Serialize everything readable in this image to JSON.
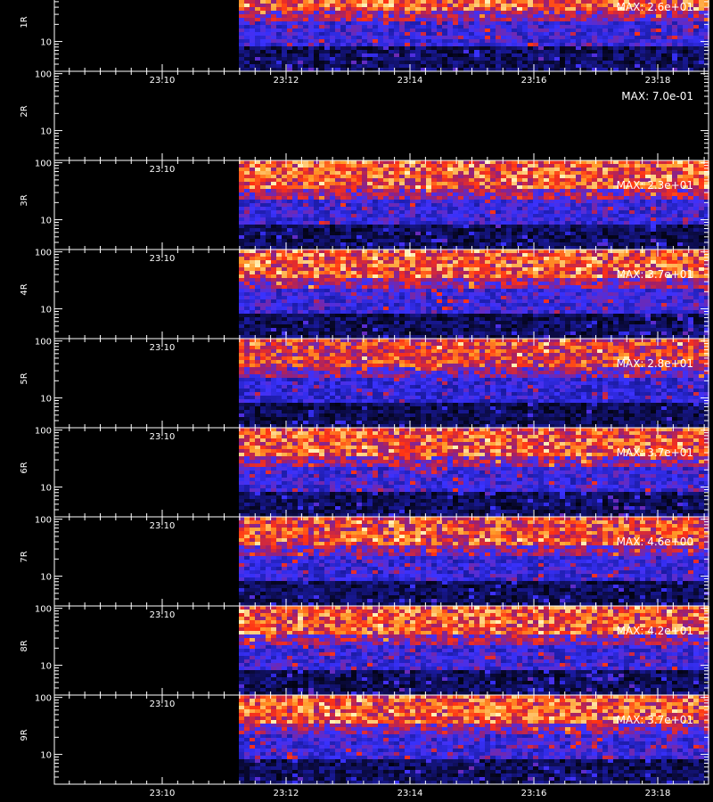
{
  "chart_data": {
    "type": "heatmap",
    "x_tick_labels": [
      "23:10",
      "23:12",
      "23:14",
      "23:16",
      "23:18"
    ],
    "y_tick_labels": [
      "100",
      "10"
    ],
    "y_scale": "log",
    "ylim": [
      3,
      110
    ],
    "colormap": [
      "#000000",
      "#1a1aa0",
      "#3a32ff",
      "#a0206a",
      "#ff3214",
      "#ff9a28",
      "#fff0b4"
    ],
    "panels": [
      {
        "label": "1R",
        "max_label": "MAX: 2.6e+01",
        "has_data": true,
        "level": 1.0
      },
      {
        "label": "2R",
        "max_label": "MAX: 7.0e-01",
        "has_data": false,
        "level": 0.0
      },
      {
        "label": "3R",
        "max_label": "MAX: 2.3e+01",
        "has_data": true,
        "level": 1.0
      },
      {
        "label": "4R",
        "max_label": "MAX: 3.7e+01",
        "has_data": true,
        "level": 1.0
      },
      {
        "label": "5R",
        "max_label": "MAX: 2.8e+01",
        "has_data": true,
        "level": 0.9
      },
      {
        "label": "6R",
        "max_label": "MAX: 3.7e+01",
        "has_data": true,
        "level": 1.0
      },
      {
        "label": "7R",
        "max_label": "MAX: 4.6e+00",
        "has_data": true,
        "level": 0.95
      },
      {
        "label": "8R",
        "max_label": "MAX: 4.2e+01",
        "has_data": true,
        "level": 1.0
      },
      {
        "label": "9R",
        "max_label": "MAX: 3.7e+01",
        "has_data": true,
        "level": 1.0
      }
    ]
  }
}
